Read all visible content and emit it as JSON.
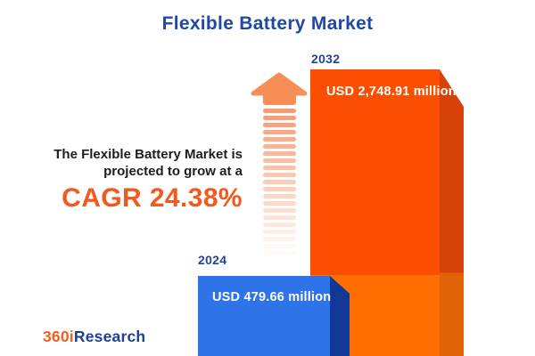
{
  "title": "Flexible Battery Market",
  "description": {
    "line1": "The Flexible Battery Market is",
    "line2": "projected to grow at a",
    "cagr": "CAGR 24.38%"
  },
  "bars": {
    "b2024": {
      "year": "2024",
      "value": "USD 479.66 million"
    },
    "b2032": {
      "year": "2032",
      "value": "USD 2,748.91 million"
    }
  },
  "logo": {
    "prefix": "360i",
    "suffix": "Research"
  },
  "colors": {
    "title-blue": "#2148a4",
    "navy-text": "#21439c",
    "blue-face": "#2e74e8",
    "blue-side": "#113896",
    "orange-face-top": "#fb4e01",
    "orange-face-bottom": "#fe6e01",
    "orange-side-top": "#d74208",
    "orange-side-bottom": "#e06307",
    "arrow-orange": "#f78e58",
    "stripe-orange": "#f79264",
    "cagr-orange": "#f2591d",
    "logo-orange": "#f26022",
    "logo-blue": "#1e3f97"
  },
  "chart_data": {
    "type": "bar",
    "title": "Flexible Battery Market",
    "categories": [
      "2024",
      "2032"
    ],
    "values": [
      479.66,
      2748.91
    ],
    "value_labels": [
      "USD 479.66 million",
      "USD 2,748.91 million"
    ],
    "unit": "USD million",
    "ylim": [
      0,
      3000
    ],
    "grid": false,
    "legend": false,
    "cagr_percent": 24.38,
    "annotation": "The Flexible Battery Market is projected to grow at a CAGR 24.38%",
    "series_colors": {
      "2024": "#2e74e8",
      "2032": "#fb4e01"
    },
    "style": "3d-infographic-bars-with-growth-arrow"
  }
}
